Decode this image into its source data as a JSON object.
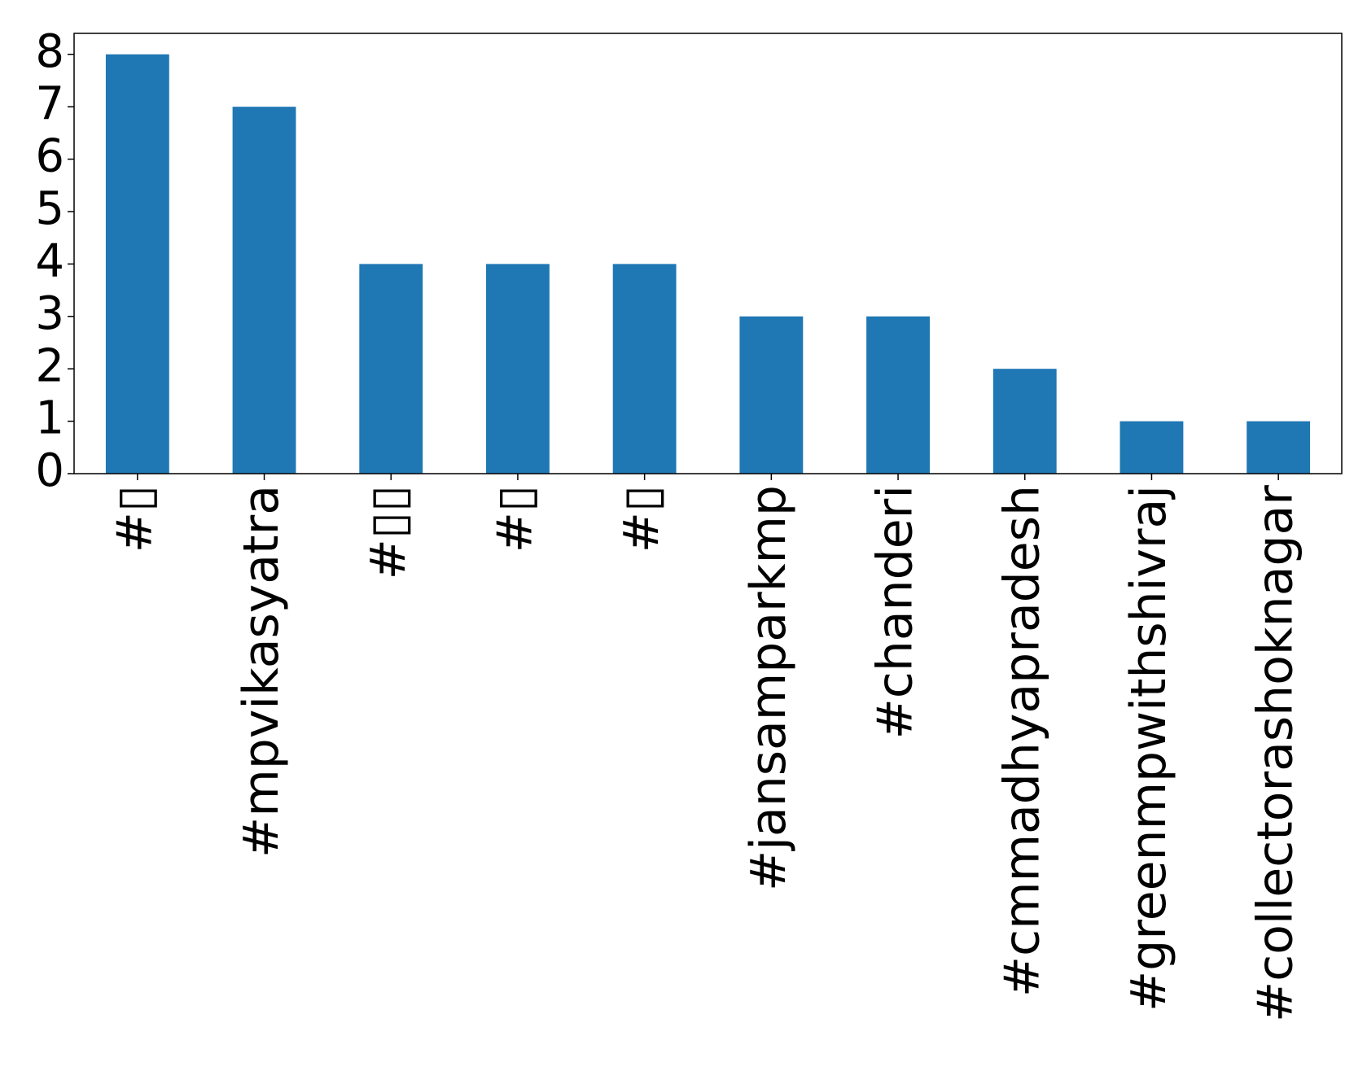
{
  "chart_data": {
    "type": "bar",
    "categories": [
      "#▯",
      "#mpvikasyatra",
      "#▯▯",
      "#▯",
      "#▯",
      "#jansamparkmp",
      "#chanderi",
      "#cmmadhyapradesh",
      "#greenmpwithshivraj",
      "#collectorashoknagar"
    ],
    "values": [
      8,
      7,
      4,
      4,
      4,
      3,
      3,
      2,
      1,
      1
    ],
    "color": "#1f77b4",
    "ylim": [
      0,
      8.4
    ],
    "yticks": [
      0,
      1,
      2,
      3,
      4,
      5,
      6,
      7,
      8
    ],
    "grid": false
  }
}
